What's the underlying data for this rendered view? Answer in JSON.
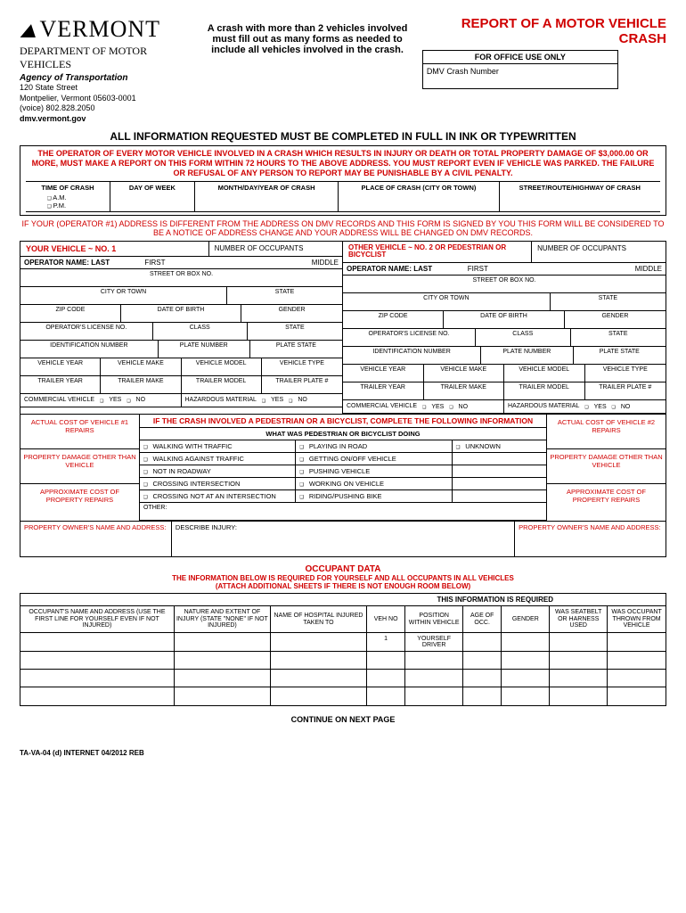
{
  "header": {
    "logo_text": "VERMONT",
    "dept": "DEPARTMENT OF MOTOR VEHICLES",
    "agency": "Agency of Transportation",
    "addr1": "120 State Street",
    "addr2": "Montpelier, Vermont 05603-0001",
    "phone": "(voice) 802.828.2050",
    "web": "dmv.vermont.gov",
    "title": "REPORT OF A MOTOR VEHICLE CRASH",
    "office_label": "FOR OFFICE USE ONLY",
    "office_field": "DMV Crash Number",
    "mid_note": "A crash with more than 2 vehicles involved must fill out as many forms as needed to include all vehicles involved in the crash."
  },
  "section1_title": "ALL INFORMATION REQUESTED MUST BE COMPLETED IN FULL IN INK OR TYPEWRITTEN",
  "warning": "THE OPERATOR OF EVERY MOTOR VEHICLE INVOLVED IN A CRASH WHICH RESULTS IN INJURY OR DEATH OR TOTAL PROPERTY DAMAGE OF $3,000.00 OR MORE, MUST MAKE A REPORT ON THIS FORM WITHIN 72 HOURS TO THE ABOVE ADDRESS.  YOU MUST REPORT EVEN IF VEHICLE WAS PARKED.  THE FAILURE OR REFUSAL OF ANY PERSON TO REPORT MAY BE PUNISHABLE BY A CIVIL PENALTY.",
  "meta": {
    "time": "TIME OF CRASH",
    "am": "A.M.",
    "pm": "P.M.",
    "day": "DAY OF WEEK",
    "date": "MONTH/DAY/YEAR OF CRASH",
    "place": "PLACE OF CRASH (CITY OR TOWN)",
    "street": "STREET/ROUTE/HIGHWAY OF CRASH"
  },
  "addr_note": "IF YOUR (OPERATOR #1) ADDRESS IS DIFFERENT FROM THE ADDRESS ON DMV RECORDS AND THIS FORM IS SIGNED BY YOU THIS FORM WILL BE CONSIDERED TO BE A NOTICE OF ADDRESS CHANGE AND YOUR ADDRESS WILL BE CHANGED ON DMV RECORDS.",
  "veh1": {
    "title": "YOUR VEHICLE ~ NO. 1",
    "occ": "NUMBER OF OCCUPANTS"
  },
  "veh2": {
    "title": "OTHER VEHICLE ~ NO. 2 OR PEDESTRIAN OR BICYCLIST",
    "occ": "NUMBER OF OCCUPANTS"
  },
  "fields": {
    "op_last": "OPERATOR NAME: LAST",
    "first": "FIRST",
    "middle": "MIDDLE",
    "street": "STREET OR BOX NO.",
    "city": "CITY OR TOWN",
    "state": "STATE",
    "zip": "ZIP CODE",
    "dob": "DATE OF BIRTH",
    "gender": "GENDER",
    "lic": "OPERATOR'S LICENSE NO.",
    "class": "CLASS",
    "id": "IDENTIFICATION NUMBER",
    "plate": "PLATE NUMBER",
    "plate_state": "PLATE STATE",
    "vyear": "VEHICLE YEAR",
    "vmake": "VEHICLE MAKE",
    "vmodel": "VEHICLE MODEL",
    "vtype": "VEHICLE TYPE",
    "tyear": "TRAILER YEAR",
    "tmake": "TRAILER MAKE",
    "tmodel": "TRAILER MODEL",
    "tplate": "TRAILER PLATE #",
    "comm": "COMMERCIAL VEHICLE",
    "haz": "HAZARDOUS MATERIAL",
    "yes": "YES",
    "no": "NO"
  },
  "costs": {
    "actual1": "ACTUAL COST OF VEHICLE #1 REPAIRS",
    "prop_other": "PROPERTY DAMAGE OTHER THAN VEHICLE",
    "approx": "APPROXIMATE COST OF PROPERTY REPAIRS",
    "actual2": "ACTUAL COST OF VEHICLE #2 REPAIRS",
    "owner": "PROPERTY OWNER'S NAME AND ADDRESS:",
    "describe": "DESCRIBE INJURY:"
  },
  "ped": {
    "title": "IF THE CRASH INVOLVED A PEDESTRIAN OR A BICYCLIST, COMPLETE THE FOLLOWING INFORMATION",
    "sub": "WHAT WAS PEDESTRIAN OR BICYCLIST DOING",
    "opts": [
      "WALKING WITH TRAFFIC",
      "PLAYING IN ROAD",
      "UNKNOWN",
      "WALKING AGAINST TRAFFIC",
      "GETTING ON/OFF VEHICLE",
      "",
      "NOT IN ROADWAY",
      "PUSHING VEHICLE",
      "",
      "CROSSING INTERSECTION",
      "WORKING ON VEHICLE",
      "",
      "CROSSING NOT AT AN INTERSECTION",
      "RIDING/PUSHING BIKE",
      ""
    ],
    "other": "OTHER:"
  },
  "occdata": {
    "title": "OCCUPANT DATA",
    "sub1": "THE INFORMATION BELOW IS REQUIRED FOR YOURSELF AND ALL OCCUPANTS IN ALL VEHICLES",
    "sub2": "(ATTACH ADDITIONAL SHEETS IF THERE IS NOT ENOUGH ROOM BELOW)",
    "req": "THIS INFORMATION IS REQUIRED",
    "headers": [
      "OCCUPANT'S NAME AND ADDRESS (USE THE FIRST LINE FOR YOURSELF EVEN IF NOT INJURED)",
      "NATURE AND EXTENT OF INJURY (STATE \"NONE\" IF NOT INJURED)",
      "NAME OF HOSPITAL INJURED TAKEN TO",
      "VEH NO",
      "POSITION WITHIN VEHICLE",
      "AGE OF OCC.",
      "GENDER",
      "WAS SEATBELT OR HARNESS USED",
      "WAS OCCUPANT THROWN FROM VEHICLE"
    ],
    "row1": {
      "veh": "1",
      "pos": "YOURSELF DRIVER"
    }
  },
  "cont": "CONTINUE ON NEXT PAGE",
  "footer": "TA-VA-04 (d)  INTERNET  04/2012 REB",
  "colors": {
    "red": "#d00000",
    "black": "#000000",
    "white": "#ffffff"
  }
}
